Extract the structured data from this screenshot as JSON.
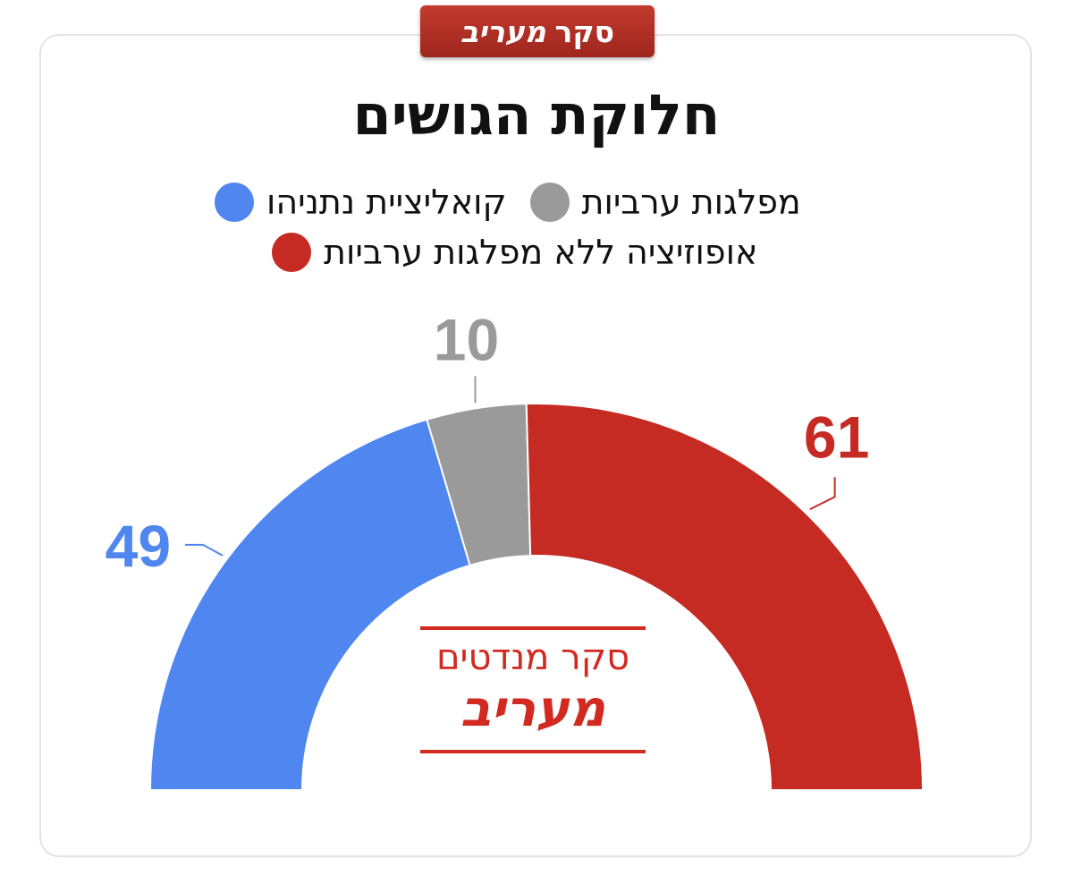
{
  "badge": {
    "prefix": "סקר",
    "brand": "מעריב"
  },
  "title": "חלוקת הגושים",
  "logo": {
    "line1": "סקר מנדטים",
    "line2": "מעריב"
  },
  "colors": {
    "blue": "#4f86f0",
    "gray": "#9a9a9a",
    "red": "#c52b22",
    "brand_red": "#d22a20"
  },
  "chart_data": {
    "type": "pie",
    "title": "חלוקת הגושים",
    "subtype": "semicircle-donut",
    "slices": [
      {
        "label": "קואליציית נתניהו",
        "value": 49,
        "color": "#4f86f0"
      },
      {
        "label": "מפלגות ערביות",
        "value": 10,
        "color": "#9a9a9a"
      },
      {
        "label": "אופוזיציה ללא מפלגות ערביות",
        "value": 61,
        "color": "#c52b22"
      }
    ],
    "total": 120,
    "legend_position": "top"
  }
}
